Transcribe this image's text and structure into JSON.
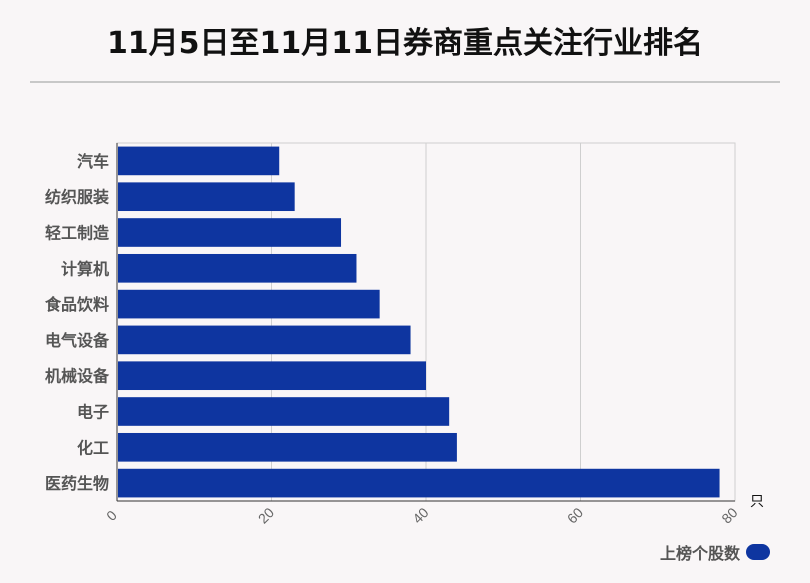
{
  "title": "11月5日至11月11日券商重点关注行业排名",
  "chart_data": {
    "type": "bar",
    "orientation": "horizontal",
    "categories": [
      "汽车",
      "纺织服装",
      "轻工制造",
      "计算机",
      "食品饮料",
      "电气设备",
      "机械设备",
      "电子",
      "化工",
      "医药生物"
    ],
    "series": [
      {
        "name": "上榜个股数",
        "values": [
          21,
          23,
          29,
          31,
          34,
          38,
          40,
          43,
          44,
          78
        ]
      }
    ],
    "xlim": [
      0,
      80
    ],
    "xticks": [
      "0",
      "20",
      "40",
      "60",
      "80"
    ],
    "x_unit": "只",
    "grid": true,
    "legend_position": "bottom-right",
    "bar_color": "#0e35a0"
  }
}
